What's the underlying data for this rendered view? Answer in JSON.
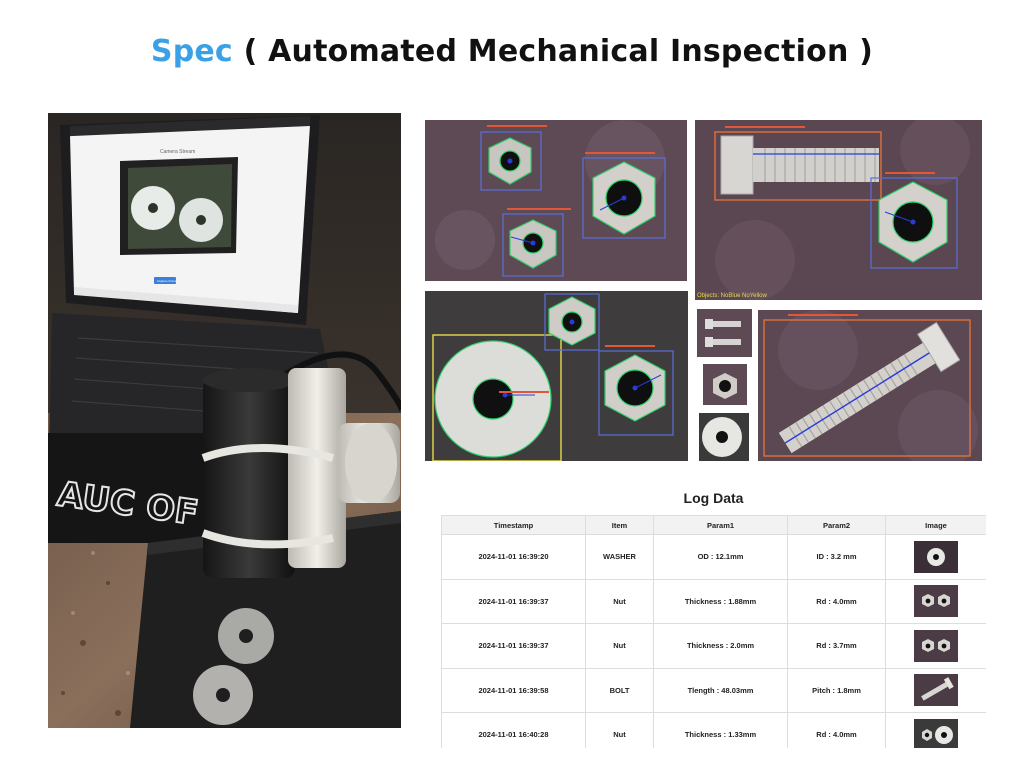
{
  "header": {
    "brand": "Spec",
    "subtitle": "( Automated Mechanical Inspection )"
  },
  "photo": {
    "screen_title": "Camera Stream",
    "capture_button": "Capture Frame",
    "sticker_text": "AUC OF"
  },
  "detections": {
    "panel2_label": "Objects: NoBlue NoYellow"
  },
  "log": {
    "title": "Log Data",
    "columns": [
      "Timestamp",
      "Item",
      "Param1",
      "Param2",
      "Image"
    ],
    "rows": [
      {
        "timestamp": "2024-11-01 16:39:20",
        "item": "WASHER",
        "param1": "OD : 12.1mm",
        "param2": "ID : 3.2 mm",
        "thumb": "washer"
      },
      {
        "timestamp": "2024-11-01 16:39:37",
        "item": "Nut",
        "param1": "Thickness : 1.88mm",
        "param2": "Rd : 4.0mm",
        "thumb": "two-nuts"
      },
      {
        "timestamp": "2024-11-01 16:39:37",
        "item": "Nut",
        "param1": "Thickness : 2.0mm",
        "param2": "Rd : 3.7mm",
        "thumb": "two-nuts"
      },
      {
        "timestamp": "2024-11-01 16:39:58",
        "item": "BOLT",
        "param1": "Tlength : 48.03mm",
        "param2": "Pitch : 1.8mm",
        "thumb": "bolt"
      },
      {
        "timestamp": "2024-11-01 16:40:28",
        "item": "Nut",
        "param1": "Thickness : 1.33mm",
        "param2": "Rd : 4.0mm",
        "thumb": "nut-washer"
      }
    ]
  },
  "colors": {
    "brand": "#3aa1e6",
    "detect_box_blue": "#5a6fd8",
    "detect_contour_green": "#2ed16a",
    "detect_box_orange": "#e0703a",
    "detect_box_yellow": "#e6d94a"
  }
}
